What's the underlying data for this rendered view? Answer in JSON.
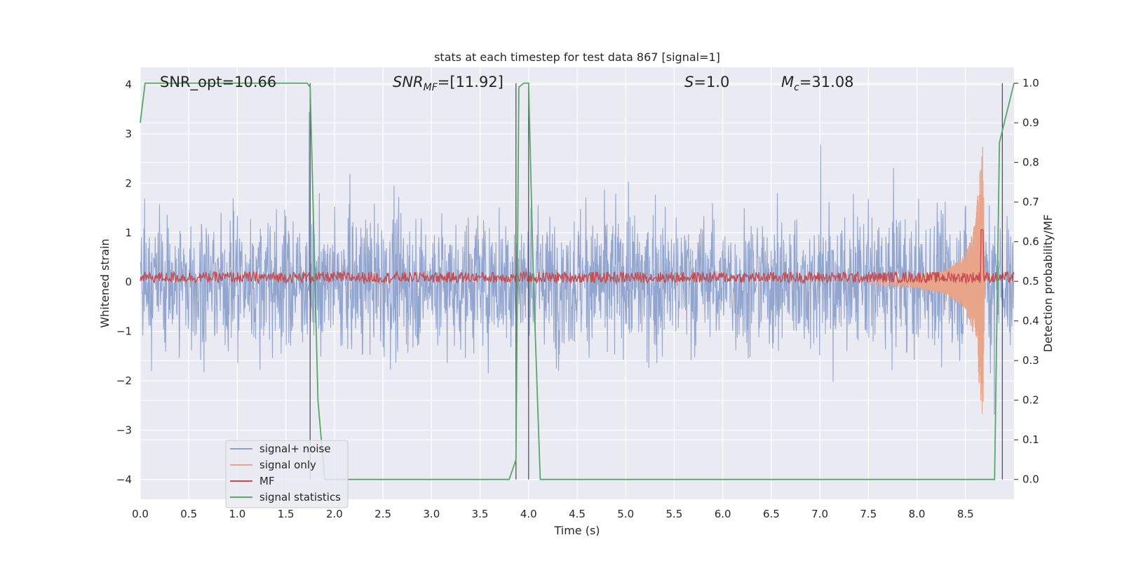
{
  "chart_data": {
    "type": "line",
    "title": "stats at each timestep for test data 867 [signal=1]",
    "xlabel": "Time (s)",
    "ylabel": "Whitened strain",
    "y2label": "Detection probability/MF",
    "xlim": [
      0.0,
      9.0
    ],
    "ylim": [
      -4.4,
      4.35
    ],
    "y2lim": [
      -0.05,
      1.04
    ],
    "x_ticks": [
      "0.0",
      "0.5",
      "1.0",
      "1.5",
      "2.0",
      "2.5",
      "3.0",
      "3.5",
      "4.0",
      "4.5",
      "5.0",
      "5.5",
      "6.0",
      "6.5",
      "7.0",
      "7.5",
      "8.0",
      "8.5"
    ],
    "y_ticks": [
      "4",
      "3",
      "2",
      "1",
      "0",
      "−1",
      "−2",
      "−3",
      "−4"
    ],
    "y2_ticks": [
      "1.0",
      "0.9",
      "0.8",
      "0.7",
      "0.6",
      "0.5",
      "0.4",
      "0.3",
      "0.2",
      "0.1",
      "0.0"
    ],
    "grid": true,
    "legend_position": "lower-left",
    "annotations": {
      "snr_opt": "SNR_opt=10.66",
      "snr_mf_base": "SNR",
      "snr_mf_sub": "MF",
      "snr_mf_value": "=[11.92]",
      "s_base": "S",
      "s_value": "=1.0",
      "mc_base": "M",
      "mc_sub": "c",
      "mc_value": "=31.08"
    },
    "series": [
      {
        "name": "signal+ noise",
        "color": "#8da1cc",
        "axis": "left",
        "description_values": {
          "noise_std": 1.1,
          "peak_abs": 3.8
        }
      },
      {
        "name": "signal only",
        "color": "#e8a58a",
        "axis": "left",
        "x": [
          7.5,
          8.0,
          8.3,
          8.5,
          8.6,
          8.65,
          8.68,
          8.7
        ],
        "envelope": [
          0.05,
          0.12,
          0.25,
          0.55,
          1.2,
          2.3,
          2.8,
          0.1
        ]
      },
      {
        "name": "MF",
        "color": "#c44e52",
        "axis": "right",
        "baseline": 0.51,
        "spike_x": 8.67,
        "spike_y": 0.63
      },
      {
        "name": "signal statistics",
        "color": "#55a868",
        "axis": "right",
        "x": [
          0.0,
          0.05,
          1.72,
          1.75,
          1.83,
          1.9,
          3.8,
          3.87,
          3.9,
          3.95,
          4.0,
          4.05,
          4.12,
          8.8,
          8.85,
          9.0
        ],
        "y": [
          0.9,
          1.0,
          1.0,
          0.99,
          0.2,
          0.0,
          0.0,
          0.05,
          0.99,
          1.0,
          1.0,
          0.5,
          0.0,
          0.0,
          0.85,
          1.0
        ]
      }
    ],
    "vlines": [
      1.75,
      3.87,
      4.0,
      8.88
    ]
  }
}
